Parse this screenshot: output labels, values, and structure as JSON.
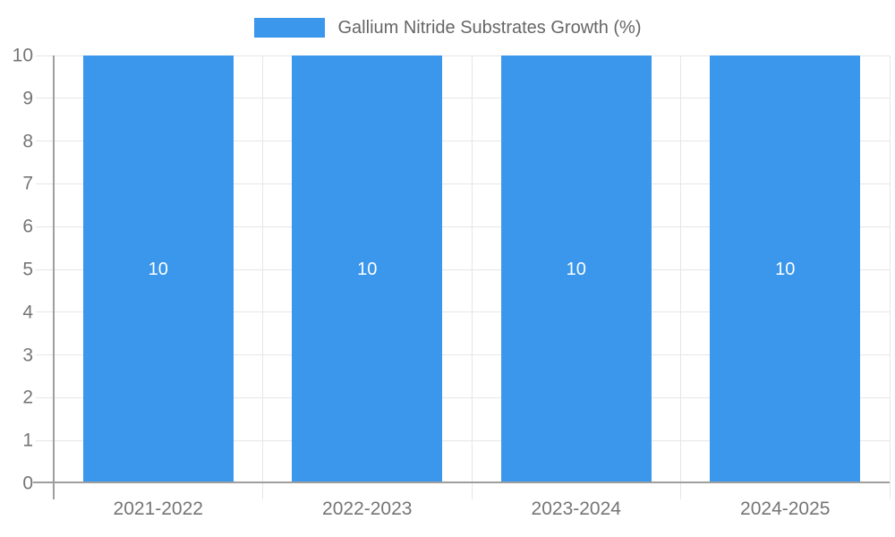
{
  "chart": {
    "colors": {
      "bar": "#3b97ec",
      "grid": "#e6e6e6",
      "axis": "#9e9e9e",
      "tick_label": "#757575",
      "legend_text": "#666666",
      "bar_label": "#ffffff",
      "background": "#ffffff"
    }
  },
  "chart_data": {
    "type": "bar",
    "title": "Gallium Nitride Substrates Growth (%)",
    "categories": [
      "2021-2022",
      "2022-2023",
      "2023-2024",
      "2024-2025"
    ],
    "values": [
      10,
      10,
      10,
      10
    ],
    "bar_labels": [
      "10",
      "10",
      "10",
      "10"
    ],
    "xlabel": "",
    "ylabel": "",
    "ylim": [
      0,
      10
    ],
    "yticks": [
      0,
      1,
      2,
      3,
      4,
      5,
      6,
      7,
      8,
      9,
      10
    ],
    "grid": true,
    "legend_position": "top",
    "legend_entries": [
      "Gallium Nitride Substrates Growth (%)"
    ]
  }
}
